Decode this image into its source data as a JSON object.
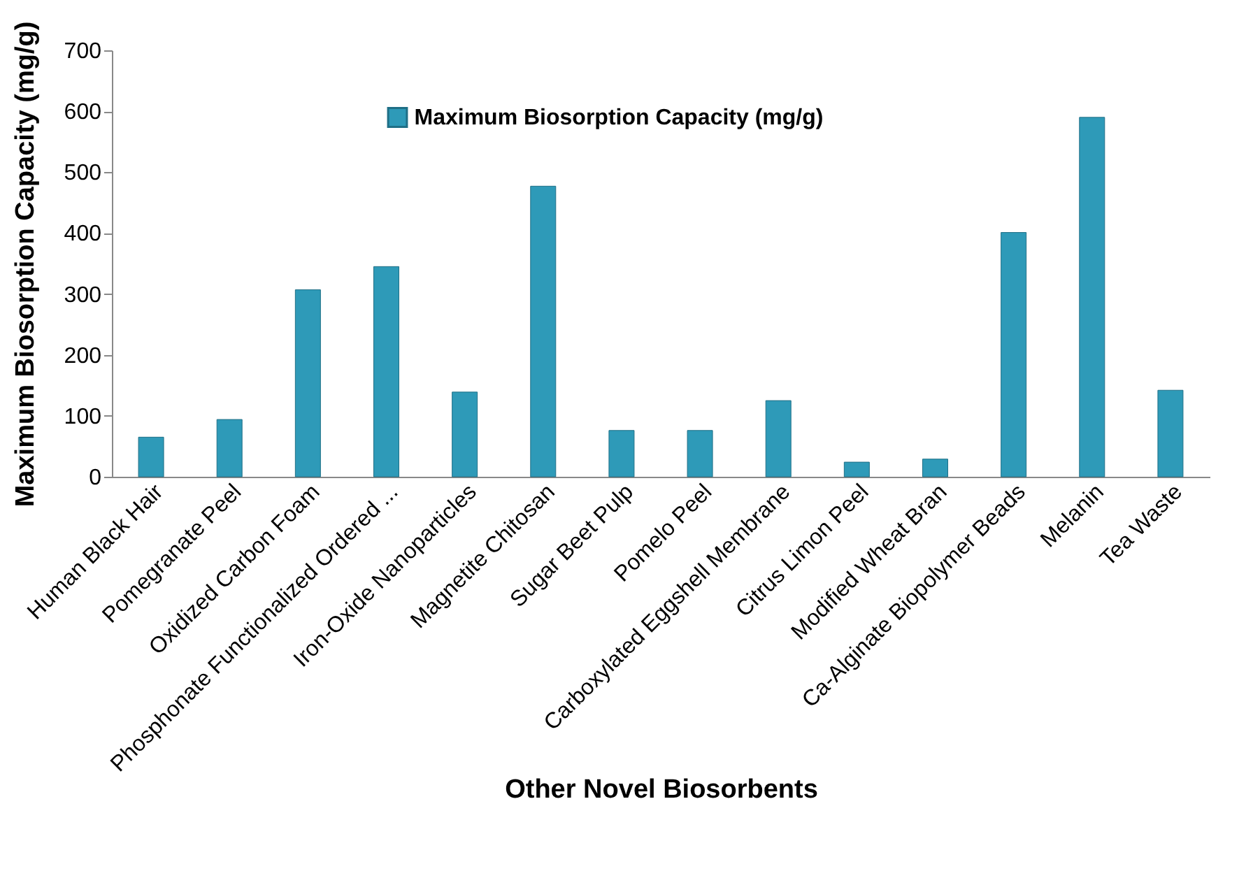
{
  "chart_data": {
    "type": "bar",
    "categories": [
      "Human Black Hair",
      "Pomegranate Peel",
      "Oxidized Carbon Foam",
      "Phosphonate Functionalized Ordered ...",
      "Iron-Oxide Nanoparticles",
      "Magnetite Chitosan",
      "Sugar Beet Pulp",
      "Pomelo Peel",
      "Carboxylated Eggshell Membrane",
      "Citrus Limon Peel",
      "Modified Wheat Bran",
      "Ca-Alginate Biopolymer Beads",
      "Melanin",
      "Tea Waste"
    ],
    "series": [
      {
        "name": "Maximum Biosorption Capacity (mg/g)",
        "color": "#2e9ab8",
        "values": [
          65,
          94,
          307,
          345,
          139,
          477,
          76,
          76,
          125,
          24,
          29,
          401,
          590,
          142
        ]
      }
    ],
    "xlabel": "Other Novel Biosorbents",
    "ylabel": "Maximum Biosorption Capacity (mg/g)",
    "ylim": [
      0,
      700
    ],
    "yticks": [
      0,
      100,
      200,
      300,
      400,
      500,
      600,
      700
    ],
    "grid": false,
    "legend": "top"
  }
}
